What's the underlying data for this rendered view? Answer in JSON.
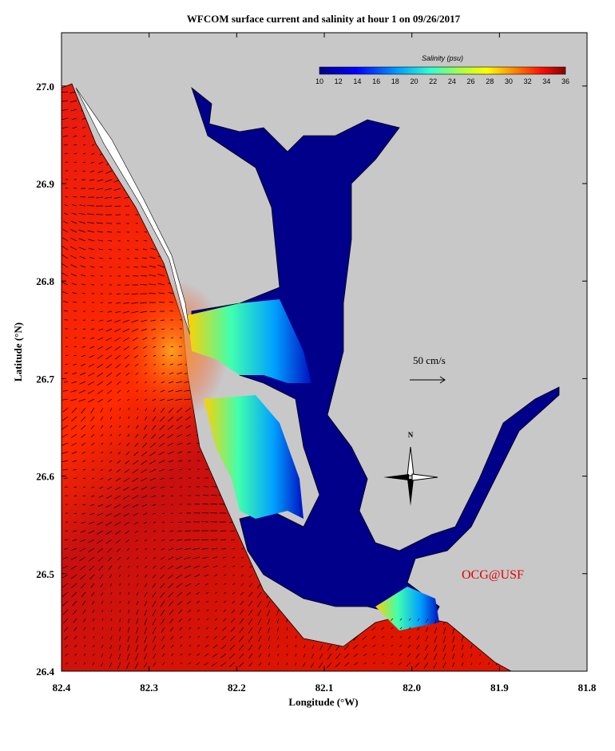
{
  "title": "WFCOM surface current and salinity at hour 1 on 09/26/2017",
  "x_axis": {
    "label": "Longitude (°W)",
    "ticks": [
      "82.4",
      "82.3",
      "82.2",
      "82.1",
      "82.0",
      "81.9",
      "81.8"
    ]
  },
  "y_axis": {
    "label": "Latitude (°N)",
    "ticks": [
      "26.4",
      "26.5",
      "26.6",
      "26.7",
      "26.8",
      "26.9",
      "27.0"
    ]
  },
  "colorbar": {
    "title": "Salinity (psu)",
    "ticks": [
      "10",
      "12",
      "14",
      "16",
      "18",
      "20",
      "22",
      "24",
      "26",
      "28",
      "30",
      "32",
      "34",
      "36"
    ]
  },
  "scale_label": "50 cm/s",
  "compass": "N",
  "credit": "OCG@USF"
}
